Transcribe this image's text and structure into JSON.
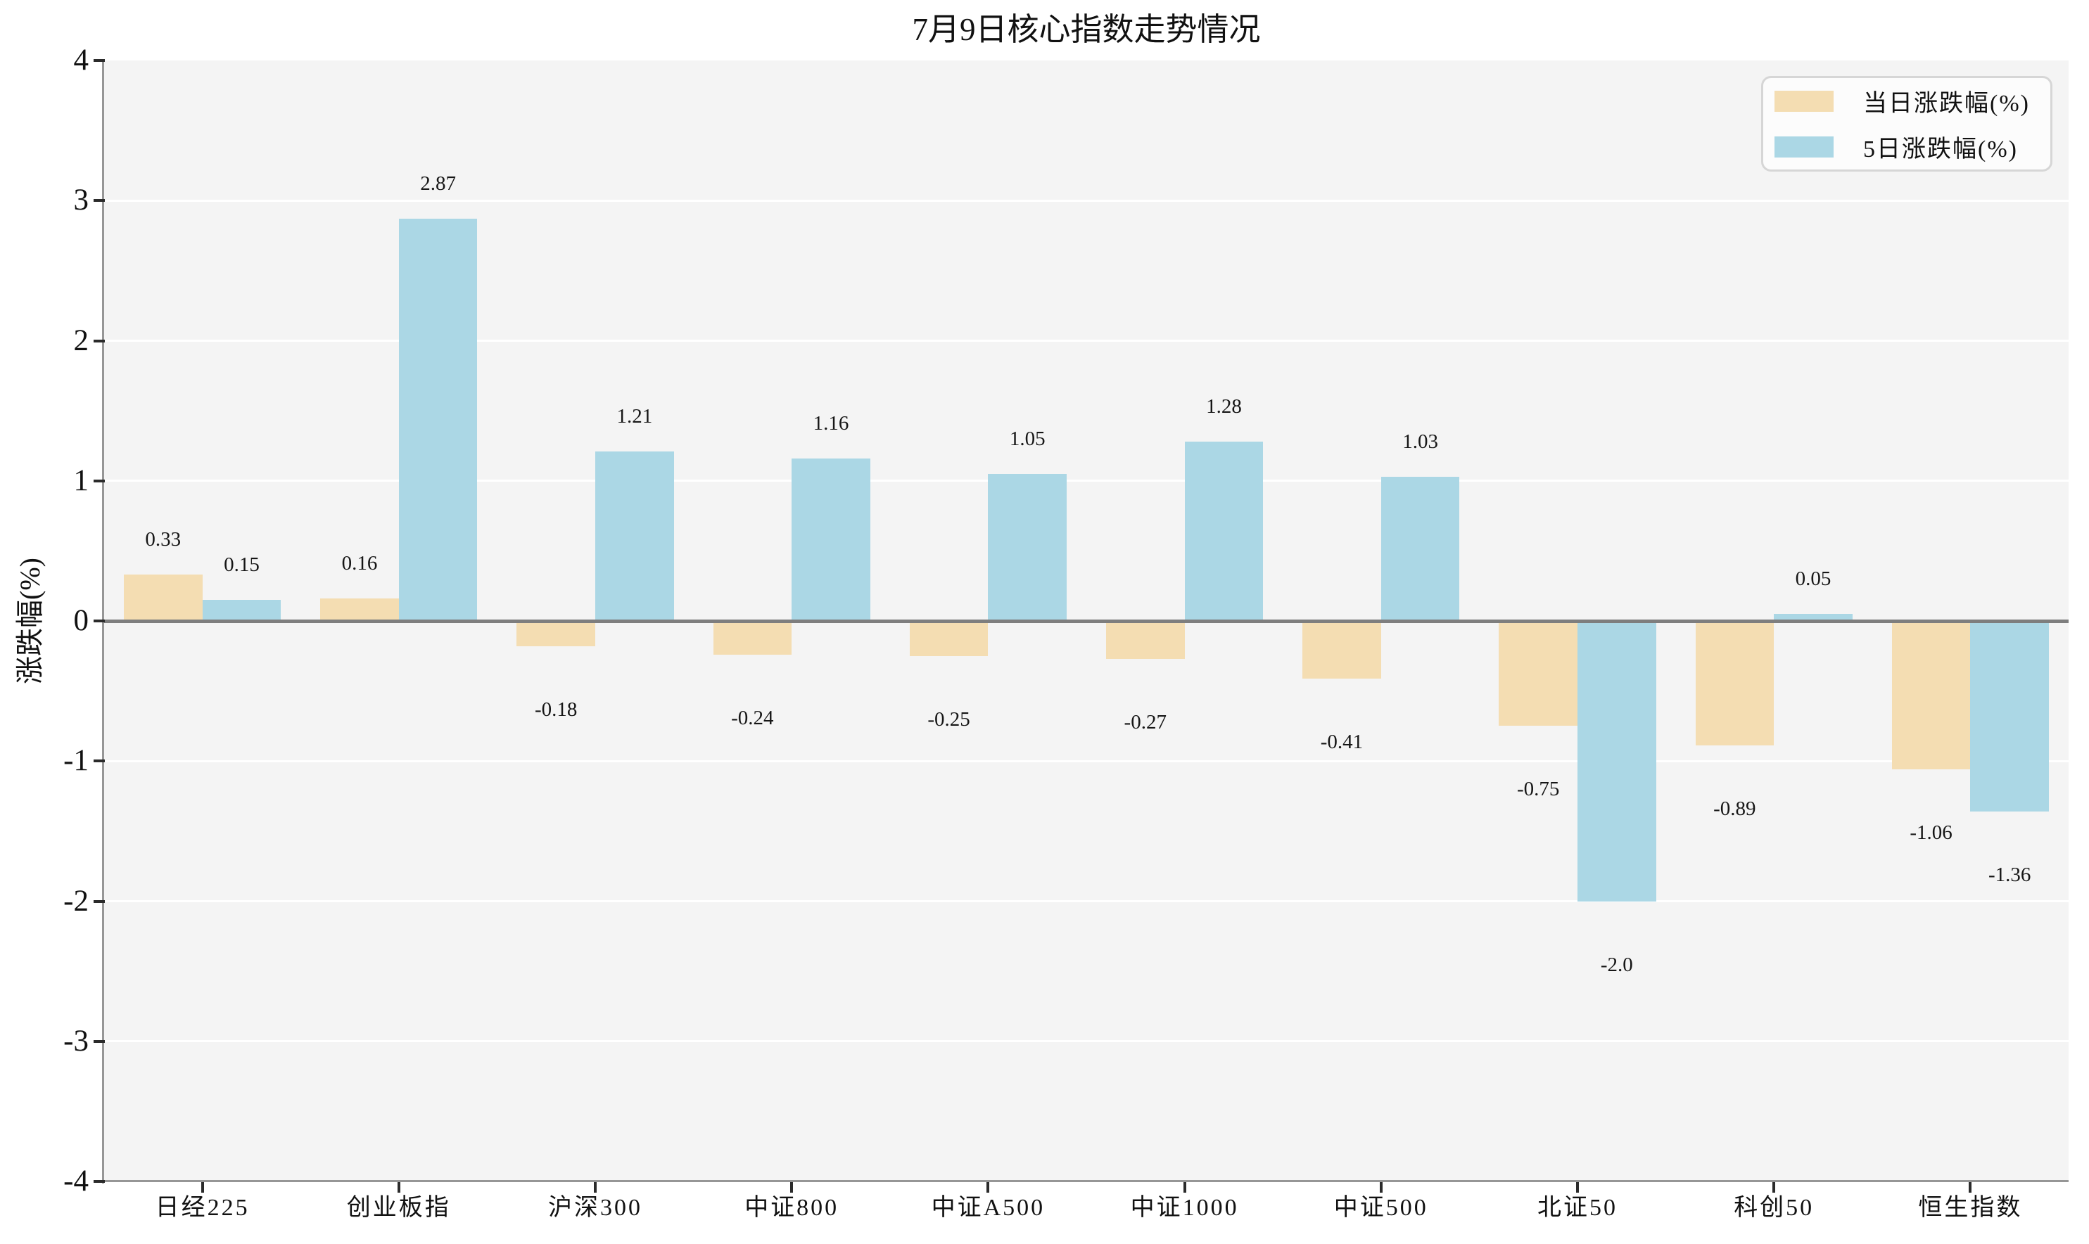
{
  "chart_data": {
    "type": "bar",
    "title": "7月9日核心指数走势情况",
    "xlabel": "",
    "ylabel": "涨跌幅(%)",
    "categories": [
      "日经225",
      "创业板指",
      "沪深300",
      "中证800",
      "中证A500",
      "中证1000",
      "中证500",
      "北证50",
      "科创50",
      "恒生指数"
    ],
    "series": [
      {
        "name": "当日涨跌幅(%)",
        "color": "#F4DDB2",
        "values": [
          0.33,
          0.16,
          -0.18,
          -0.24,
          -0.25,
          -0.27,
          -0.41,
          -0.75,
          -0.89,
          -1.06
        ],
        "labels": [
          "0.33",
          "0.16",
          "-0.18",
          "-0.24",
          "-0.25",
          "-0.27",
          "-0.41",
          "-0.75",
          "-0.89",
          "-1.06"
        ]
      },
      {
        "name": "5日涨跌幅(%)",
        "color": "#ABD7E5",
        "values": [
          0.15,
          2.87,
          1.21,
          1.16,
          1.05,
          1.28,
          1.03,
          -2.0,
          0.05,
          -1.36
        ],
        "labels": [
          "0.15",
          "2.87",
          "1.21",
          "1.16",
          "1.05",
          "1.28",
          "1.03",
          "-2.0",
          "0.05",
          "-1.36"
        ]
      }
    ],
    "ylim": [
      -4,
      4
    ],
    "yticks": [
      4,
      3,
      2,
      1,
      0,
      -1,
      -2,
      -3,
      -4
    ],
    "ytick_labels": [
      "4",
      "3",
      "2",
      "1",
      "0",
      "-1",
      "-2",
      "-3",
      "-4"
    ],
    "grid": "horizontal-white-lines-at-integers",
    "legend_position": "upper-right",
    "bar_width_fraction": 0.4,
    "value_labels_shown": true
  },
  "style": {
    "plot_background": "#f4f4f4",
    "figure_background": "#ffffff",
    "gridline_color": "#ffffff",
    "zero_line_color": "#7e7e7e",
    "spine_color": "#969696",
    "tick_color": "#2b2b2b",
    "text_color": "#111111",
    "legend_border_color": "#d6d6d6",
    "legend_background": "#fcfcfc"
  }
}
